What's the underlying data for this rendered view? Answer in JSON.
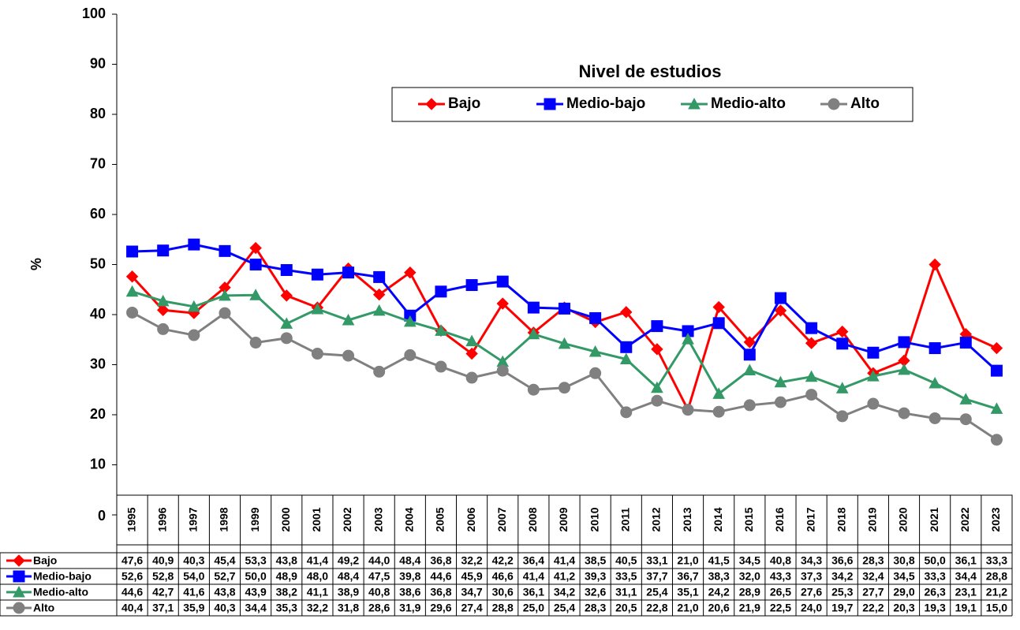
{
  "chart_data": {
    "type": "line",
    "title": "Nivel de estudios",
    "ylabel": "%",
    "categories": [
      "1995",
      "1996",
      "1997",
      "1998",
      "1999",
      "2000",
      "2001",
      "2002",
      "2003",
      "2004",
      "2005",
      "2006",
      "2007",
      "2008",
      "2009",
      "2010",
      "2011",
      "2012",
      "2013",
      "2014",
      "2015",
      "2016",
      "2017",
      "2018",
      "2019",
      "2020",
      "2021",
      "2022",
      "2023"
    ],
    "ylim": [
      0,
      100
    ],
    "yticks": [
      0,
      10,
      20,
      30,
      40,
      50,
      60,
      70,
      80,
      90,
      100
    ],
    "series": [
      {
        "name": "Bajo",
        "color": "#ff0000",
        "marker": "diamond",
        "values": [
          47.6,
          40.9,
          40.3,
          45.4,
          53.3,
          43.8,
          41.4,
          49.2,
          44.0,
          48.4,
          36.8,
          32.2,
          42.2,
          36.4,
          41.4,
          38.5,
          40.5,
          33.1,
          21.0,
          41.5,
          34.5,
          40.8,
          34.3,
          36.6,
          28.3,
          30.8,
          50.0,
          36.1,
          33.3
        ],
        "value_labels": [
          "47,6",
          "40,9",
          "40,3",
          "45,4",
          "53,3",
          "43,8",
          "41,4",
          "49,2",
          "44,0",
          "48,4",
          "36,8",
          "32,2",
          "42,2",
          "36,4",
          "41,4",
          "38,5",
          "40,5",
          "33,1",
          "21,0",
          "41,5",
          "34,5",
          "40,8",
          "34,3",
          "36,6",
          "28,3",
          "30,8",
          "50,0",
          "36,1",
          "33,3"
        ]
      },
      {
        "name": "Medio-bajo",
        "color": "#0000ff",
        "marker": "square",
        "values": [
          52.6,
          52.8,
          54.0,
          52.7,
          50.0,
          48.9,
          48.0,
          48.4,
          47.5,
          39.8,
          44.6,
          45.9,
          46.6,
          41.4,
          41.2,
          39.3,
          33.5,
          37.7,
          36.7,
          38.3,
          32.0,
          43.3,
          37.3,
          34.2,
          32.4,
          34.5,
          33.3,
          34.4,
          28.8
        ],
        "value_labels": [
          "52,6",
          "52,8",
          "54,0",
          "52,7",
          "50,0",
          "48,9",
          "48,0",
          "48,4",
          "47,5",
          "39,8",
          "44,6",
          "45,9",
          "46,6",
          "41,4",
          "41,2",
          "39,3",
          "33,5",
          "37,7",
          "36,7",
          "38,3",
          "32,0",
          "43,3",
          "37,3",
          "34,2",
          "32,4",
          "34,5",
          "33,3",
          "34,4",
          "28,8"
        ]
      },
      {
        "name": "Medio-alto",
        "color": "#339966",
        "marker": "triangle",
        "values": [
          44.6,
          42.7,
          41.6,
          43.8,
          43.9,
          38.2,
          41.1,
          38.9,
          40.8,
          38.6,
          36.8,
          34.7,
          30.6,
          36.1,
          34.2,
          32.6,
          31.1,
          25.4,
          35.1,
          24.2,
          28.9,
          26.5,
          27.6,
          25.3,
          27.7,
          29.0,
          26.3,
          23.1,
          21.2
        ],
        "value_labels": [
          "44,6",
          "42,7",
          "41,6",
          "43,8",
          "43,9",
          "38,2",
          "41,1",
          "38,9",
          "40,8",
          "38,6",
          "36,8",
          "34,7",
          "30,6",
          "36,1",
          "34,2",
          "32,6",
          "31,1",
          "25,4",
          "35,1",
          "24,2",
          "28,9",
          "26,5",
          "27,6",
          "25,3",
          "27,7",
          "29,0",
          "26,3",
          "23,1",
          "21,2"
        ]
      },
      {
        "name": "Alto",
        "color": "#808080",
        "marker": "circle",
        "values": [
          40.4,
          37.1,
          35.9,
          40.3,
          34.4,
          35.3,
          32.2,
          31.8,
          28.6,
          31.9,
          29.6,
          27.4,
          28.8,
          25.0,
          25.4,
          28.3,
          20.5,
          22.8,
          21.0,
          20.6,
          21.9,
          22.5,
          24.0,
          19.7,
          22.2,
          20.3,
          19.3,
          19.1,
          15.0
        ],
        "value_labels": [
          "40,4",
          "37,1",
          "35,9",
          "40,3",
          "34,4",
          "35,3",
          "32,2",
          "31,8",
          "28,6",
          "31,9",
          "29,6",
          "27,4",
          "28,8",
          "25,0",
          "25,4",
          "28,3",
          "20,5",
          "22,8",
          "21,0",
          "20,6",
          "21,9",
          "22,5",
          "24,0",
          "19,7",
          "22,2",
          "20,3",
          "19,3",
          "19,1",
          "15,0"
        ]
      }
    ]
  }
}
